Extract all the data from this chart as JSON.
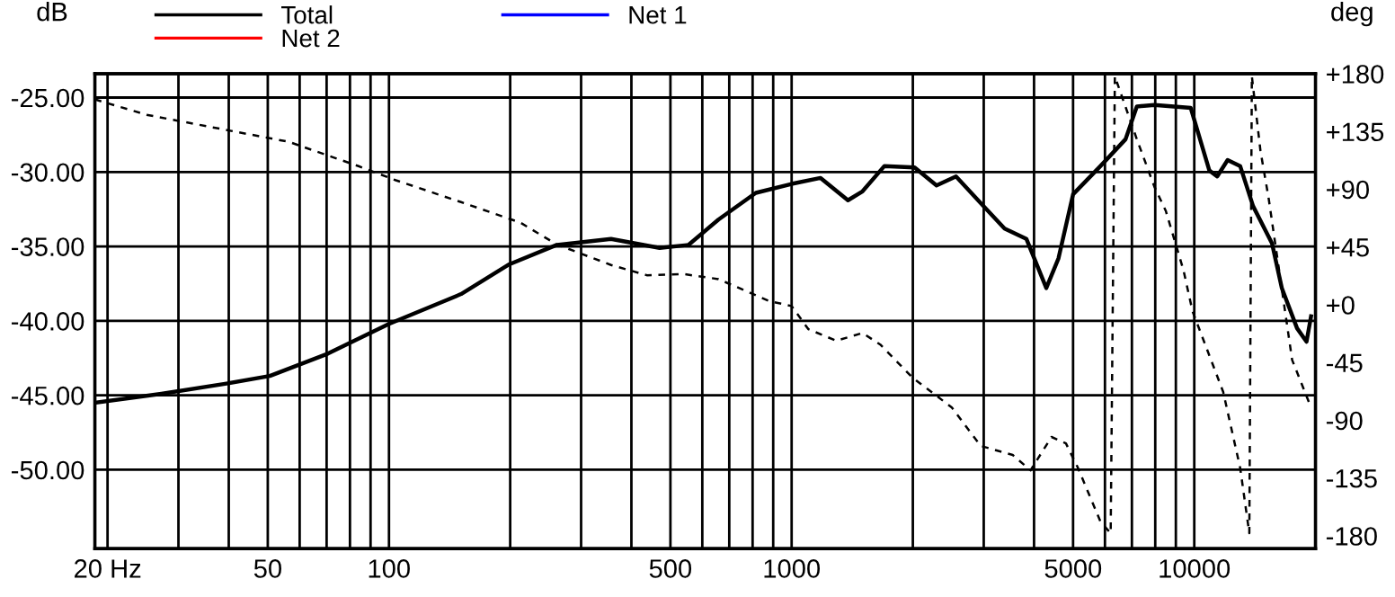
{
  "chart_data": {
    "type": "line",
    "xlabel": null,
    "ylabel": "dB",
    "y2label": "deg",
    "log": "x",
    "xlim": [
      18.6,
      20000
    ],
    "xticks": [
      {
        "value": 20,
        "label": "20 Hz"
      },
      {
        "value": 30,
        "label": null
      },
      {
        "value": 40,
        "label": null
      },
      50,
      {
        "value": 60,
        "label": null
      },
      {
        "value": 70,
        "label": null
      },
      {
        "value": 80,
        "label": null
      },
      {
        "value": 90,
        "label": null
      },
      100,
      {
        "value": 200,
        "label": null
      },
      {
        "value": 300,
        "label": null
      },
      {
        "value": 400,
        "label": null
      },
      500,
      {
        "value": 600,
        "label": null
      },
      {
        "value": 700,
        "label": null
      },
      {
        "value": 800,
        "label": null
      },
      {
        "value": 900,
        "label": null
      },
      1000,
      {
        "value": 2000,
        "label": null
      },
      {
        "value": 3000,
        "label": null
      },
      {
        "value": 4000,
        "label": null
      },
      5000,
      {
        "value": 6000,
        "label": null
      },
      {
        "value": 7000,
        "label": null
      },
      {
        "value": 8000,
        "label": null
      },
      {
        "value": 9000,
        "label": null
      },
      10000
    ],
    "ylim": [
      -55.3,
      -23.4
    ],
    "yticks": [
      {
        "value": -50,
        "label": "-50.00"
      },
      {
        "value": -45,
        "label": "-45.00"
      },
      {
        "value": -40,
        "label": "-40.00"
      },
      {
        "value": -35,
        "label": "-35.00"
      },
      {
        "value": -30,
        "label": "-30.00"
      },
      {
        "value": -25,
        "label": "-25.00"
      }
    ],
    "y2lim": [
      -190,
      180
    ],
    "y2ticks": [
      {
        "value": -180,
        "label": "-180"
      },
      {
        "value": -135,
        "label": "-135"
      },
      {
        "value": -90,
        "label": "-90"
      },
      {
        "value": -45,
        "label": "-45"
      },
      {
        "value": 0,
        "label": "+0"
      },
      {
        "value": 45,
        "label": "+45"
      },
      {
        "value": 90,
        "label": "+90"
      },
      {
        "value": 135,
        "label": "+135"
      },
      {
        "value": 180,
        "label": "+180"
      }
    ],
    "grid": true,
    "legend": "top",
    "x": [
      18.6,
      27.2,
      39.8,
      50.6,
      70.5,
      100,
      151,
      199,
      261,
      356,
      470,
      554,
      658,
      815,
      1000,
      1180,
      1380,
      1500,
      1700,
      2020,
      2290,
      2560,
      2950,
      3380,
      3830,
      4290,
      4600,
      5000,
      5850,
      6750,
      7200,
      7960,
      9800,
      10900,
      11400,
      12100,
      13000,
      14000,
      15600,
      16500,
      18000,
      19000,
      19500
    ],
    "series": [
      {
        "name": "Total",
        "color": "#000000",
        "line_style": "solid",
        "values": [
          -45.5,
          -44.9,
          -44.2,
          -43.7,
          -42.2,
          -40.2,
          -38.2,
          -36.2,
          -34.9,
          -34.5,
          -35.1,
          -34.9,
          -33.2,
          -31.4,
          -30.8,
          -30.4,
          -31.9,
          -31.3,
          -29.6,
          -29.7,
          -30.9,
          -30.3,
          -32.1,
          -33.8,
          -34.5,
          -37.8,
          -35.8,
          -31.5,
          -29.6,
          -27.8,
          -25.6,
          -25.5,
          -25.7,
          -29.9,
          -30.3,
          -29.2,
          -29.6,
          -32.3,
          -34.8,
          -37.8,
          -40.5,
          -41.4,
          -39.7
        ]
      },
      {
        "name": "Net 2",
        "color": "#ff0000",
        "line_style": "solid",
        "values": [
          null,
          null,
          null,
          null,
          null,
          null,
          null,
          null,
          null,
          null,
          null,
          null,
          null,
          null,
          null,
          null,
          null,
          null,
          null,
          null,
          null,
          null,
          null,
          null,
          null,
          null,
          null,
          null,
          null,
          null,
          null,
          null,
          null,
          null,
          null,
          null,
          null,
          null,
          null,
          null,
          null,
          null,
          null
        ]
      },
      {
        "name": "Net 1",
        "color": "#0000ff",
        "line_style": "solid",
        "values": [
          null,
          null,
          null,
          null,
          null,
          null,
          null,
          null,
          null,
          null,
          null,
          null,
          null,
          null,
          null,
          null,
          null,
          null,
          null,
          null,
          null,
          null,
          null,
          null,
          null,
          null,
          null,
          null,
          null,
          null,
          null,
          null,
          null,
          null,
          null,
          null,
          null,
          null,
          null,
          null,
          null,
          null,
          null
        ]
      },
      {
        "axis": "y2",
        "color": "#000000",
        "line_style": "dashed",
        "x": [
          18.6,
          25,
          56.3,
          84,
          104,
          151,
          212,
          261,
          356,
          437,
          537,
          658,
          877,
          1000,
          1100,
          1290,
          1500,
          1660,
          2000,
          2500,
          2950,
          3540,
          3920,
          4420,
          4800,
          5140,
          5850,
          6200,
          6350,
          7200,
          7960,
          8500,
          9400,
          9900,
          11800,
          13000,
          13700,
          13900,
          14600,
          15300,
          17500,
          19500
        ],
        "values": [
          160,
          148,
          127,
          108,
          97,
          80,
          64,
          47,
          31,
          23,
          24,
          20,
          3,
          -1,
          -19,
          -28,
          -22,
          -31,
          -57,
          -80,
          -110,
          -117,
          -129,
          -103,
          -108,
          -127,
          -169,
          -178,
          178,
          129,
          92,
          73,
          27,
          -5,
          -68,
          -127,
          -178,
          178,
          120,
          83,
          -43,
          -80
        ]
      }
    ]
  }
}
